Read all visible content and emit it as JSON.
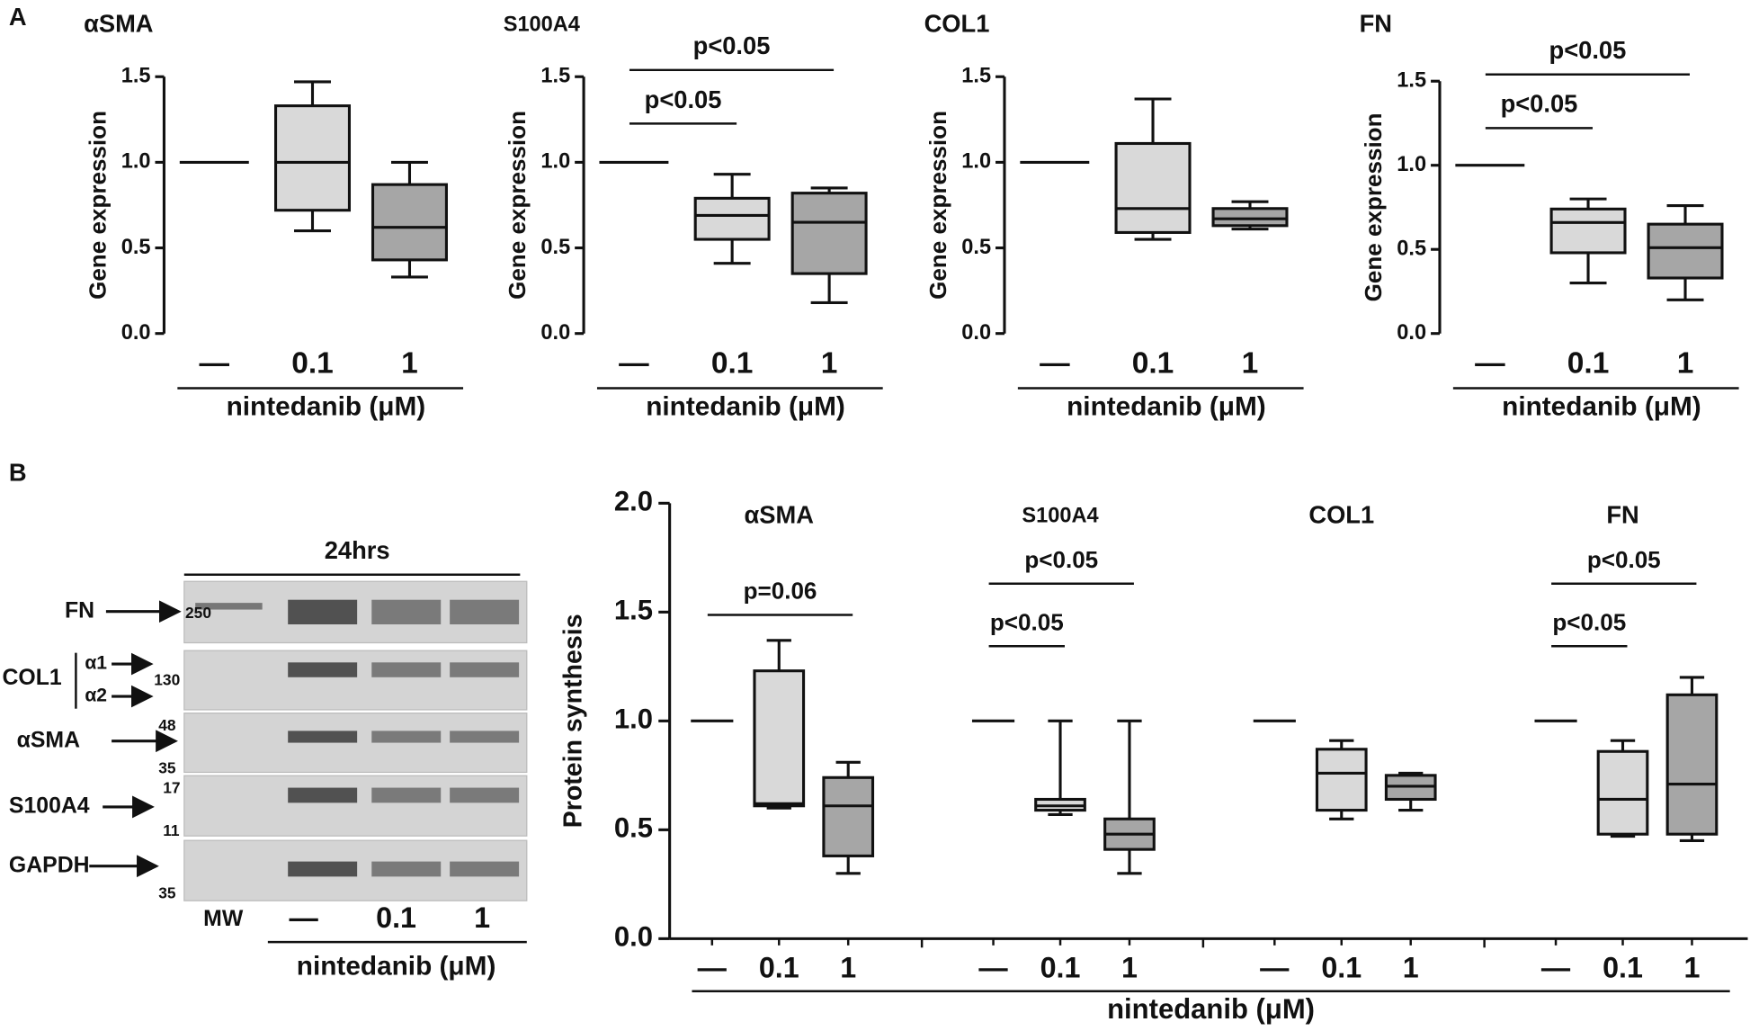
{
  "panel_labels": [
    "A",
    "B"
  ],
  "chart_data": [
    {
      "type": "box",
      "title": "αSMA",
      "ylabel": "Gene expression",
      "xlabel": "nintedanib (μM)",
      "categories": [
        "—",
        "0.1",
        "1"
      ],
      "colors": [
        "#d9d9d9",
        "#d9d9d9",
        "#a6a6a6"
      ],
      "values": [
        [
          1,
          1,
          1,
          1,
          1
        ],
        [
          0.6,
          0.72,
          1.0,
          1.33,
          1.47
        ],
        [
          0.33,
          0.43,
          0.62,
          0.87,
          1.0
        ]
      ],
      "ylim": [
        0,
        1.5
      ],
      "yticks": [
        {
          "value": 0,
          "label": "0.0"
        },
        {
          "value": 0.5,
          "label": "0.5"
        },
        {
          "value": 1,
          "label": "1.0"
        },
        {
          "value": 1.5,
          "label": "1.5"
        }
      ],
      "brackets": []
    },
    {
      "type": "box",
      "title": "S100A4",
      "ylabel": "Gene expression",
      "xlabel": "nintedanib (μM)",
      "categories": [
        "—",
        "0.1",
        "1"
      ],
      "colors": [
        "#d9d9d9",
        "#d9d9d9",
        "#a6a6a6"
      ],
      "values": [
        [
          1,
          1,
          1,
          1,
          1
        ],
        [
          0.41,
          0.55,
          0.69,
          0.79,
          0.93
        ],
        [
          0.18,
          0.35,
          0.65,
          0.82,
          0.85
        ]
      ],
      "ylim": [
        0,
        1.5
      ],
      "yticks": [
        {
          "value": 0,
          "label": "0.0"
        },
        {
          "value": 0.5,
          "label": "0.5"
        },
        {
          "value": 1,
          "label": "1.0"
        },
        {
          "value": 1.5,
          "label": "1.5"
        }
      ],
      "brackets": [
        {
          "label": "p<0.05",
          "between": [
            "—",
            "0.1"
          ]
        },
        {
          "label": "p<0.05",
          "between": [
            "—",
            "1"
          ]
        }
      ]
    },
    {
      "type": "box",
      "title": "COL1",
      "ylabel": "Gene expression",
      "xlabel": "nintedanib (μM)",
      "categories": [
        "—",
        "0.1",
        "1"
      ],
      "colors": [
        "#d9d9d9",
        "#d9d9d9",
        "#a6a6a6"
      ],
      "values": [
        [
          1,
          1,
          1,
          1,
          1
        ],
        [
          0.55,
          0.59,
          0.73,
          1.11,
          1.37
        ],
        [
          0.61,
          0.63,
          0.67,
          0.73,
          0.77
        ]
      ],
      "ylim": [
        0,
        1.5
      ],
      "yticks": [
        {
          "value": 0,
          "label": "0.0"
        },
        {
          "value": 0.5,
          "label": "0.5"
        },
        {
          "value": 1,
          "label": "1.0"
        },
        {
          "value": 1.5,
          "label": "1.5"
        }
      ],
      "brackets": []
    },
    {
      "type": "box",
      "title": "FN",
      "ylabel": "Gene expression",
      "xlabel": "nintedanib (μM)",
      "categories": [
        "—",
        "0.1",
        "1"
      ],
      "colors": [
        "#d9d9d9",
        "#d9d9d9",
        "#a6a6a6"
      ],
      "values": [
        [
          1,
          1,
          1,
          1,
          1
        ],
        [
          0.3,
          0.48,
          0.66,
          0.74,
          0.8
        ],
        [
          0.2,
          0.33,
          0.51,
          0.65,
          0.76
        ]
      ],
      "ylim": [
        0,
        1.5
      ],
      "yticks": [
        {
          "value": 0,
          "label": "0.0"
        },
        {
          "value": 0.5,
          "label": "0.5"
        },
        {
          "value": 1,
          "label": "1.0"
        },
        {
          "value": 1.5,
          "label": "1.5"
        }
      ],
      "brackets": [
        {
          "label": "p<0.05",
          "between": [
            "—",
            "0.1"
          ]
        },
        {
          "label": "p<0.05",
          "between": [
            "—",
            "1"
          ]
        }
      ]
    },
    {
      "type": "grouped-box",
      "ylabel": "Protein synthesis",
      "xlabel": "nintedanib (μM)",
      "ylim": [
        0,
        2
      ],
      "yticks": [
        {
          "value": 0,
          "label": "0.0"
        },
        {
          "value": 0.5,
          "label": "0.5"
        },
        {
          "value": 1,
          "label": "1.0"
        },
        {
          "value": 1.5,
          "label": "1.5"
        },
        {
          "value": 2,
          "label": "2.0"
        }
      ],
      "groups": [
        {
          "title": "αSMA",
          "categories": [
            "—",
            "0.1",
            "1"
          ],
          "colors": [
            "#d9d9d9",
            "#d9d9d9",
            "#a6a6a6"
          ],
          "values": [
            [
              1,
              1,
              1,
              1,
              1
            ],
            [
              0.6,
              0.61,
              0.62,
              1.23,
              1.37
            ],
            [
              0.3,
              0.38,
              0.61,
              0.74,
              0.81
            ]
          ],
          "brackets": [
            {
              "label": "p=0.06",
              "between": [
                "—",
                "1"
              ]
            }
          ]
        },
        {
          "title": "S100A4",
          "categories": [
            "—",
            "0.1",
            "1"
          ],
          "colors": [
            "#d9d9d9",
            "#d9d9d9",
            "#a6a6a6"
          ],
          "values": [
            [
              1,
              1,
              1,
              1,
              1
            ],
            [
              0.57,
              0.59,
              0.61,
              0.64,
              1.0
            ],
            [
              0.3,
              0.41,
              0.48,
              0.55,
              1.0
            ]
          ],
          "brackets": [
            {
              "label": "p<0.05",
              "between": [
                "—",
                "0.1"
              ]
            },
            {
              "label": "p<0.05",
              "between": [
                "—",
                "1"
              ]
            }
          ]
        },
        {
          "title": "COL1",
          "categories": [
            "—",
            "0.1",
            "1"
          ],
          "colors": [
            "#d9d9d9",
            "#d9d9d9",
            "#a6a6a6"
          ],
          "values": [
            [
              1,
              1,
              1,
              1,
              1
            ],
            [
              0.55,
              0.59,
              0.76,
              0.87,
              0.91
            ],
            [
              0.59,
              0.64,
              0.7,
              0.75,
              0.76
            ]
          ],
          "brackets": []
        },
        {
          "title": "FN",
          "categories": [
            "—",
            "0.1",
            "1"
          ],
          "colors": [
            "#d9d9d9",
            "#d9d9d9",
            "#a6a6a6"
          ],
          "values": [
            [
              1,
              1,
              1,
              1,
              1
            ],
            [
              0.47,
              0.48,
              0.64,
              0.86,
              0.91
            ],
            [
              0.45,
              0.48,
              0.71,
              1.12,
              1.2
            ]
          ],
          "brackets": [
            {
              "label": "p<0.05",
              "between": [
                "—",
                "0.1"
              ]
            },
            {
              "label": "p<0.05",
              "between": [
                "—",
                "1"
              ]
            }
          ]
        }
      ]
    }
  ],
  "blot": {
    "title": "24hrs",
    "rows": [
      {
        "label": "FN",
        "markers": [
          "250"
        ]
      },
      {
        "label": "COL1",
        "chains": [
          "α1",
          "α2"
        ],
        "markers": [
          "130"
        ]
      },
      {
        "label": "αSMA",
        "markers": [
          "48",
          "35"
        ]
      },
      {
        "label": "S100A4",
        "markers": [
          "17",
          "11"
        ]
      },
      {
        "label": "GAPDH",
        "markers": [
          "35"
        ]
      }
    ],
    "lanes": [
      "MW",
      "—",
      "0.1",
      "1"
    ],
    "xlabel": "nintedanib (μM)"
  }
}
